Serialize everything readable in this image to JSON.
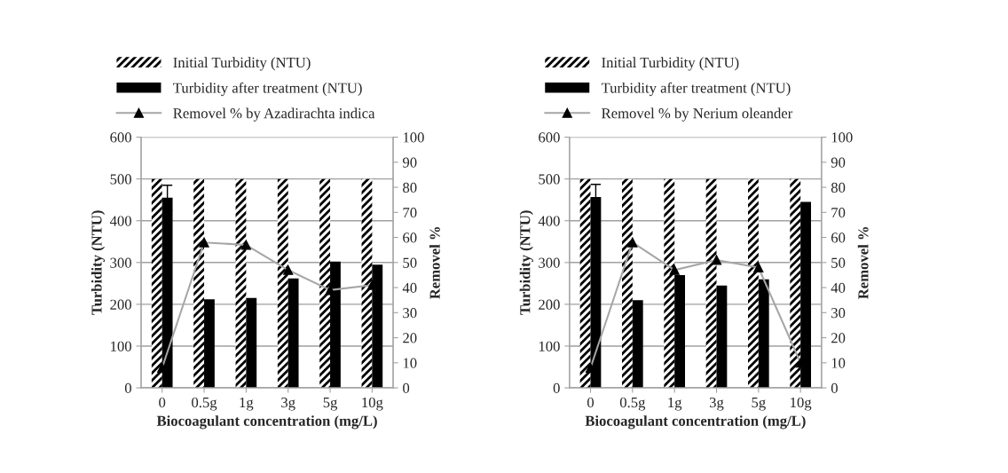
{
  "chart_data": [
    {
      "type": "bar",
      "categories": [
        "0",
        "0.5g",
        "1g",
        "3g",
        "5g",
        "10g"
      ],
      "xlabel": "Biocoagulant concentration (mg/L)",
      "ylabel": "Turbidity (NTU)",
      "y2label": "Removel %",
      "ylim": [
        0,
        600
      ],
      "yticks": [
        0,
        100,
        200,
        300,
        400,
        500,
        600
      ],
      "y2lim": [
        0,
        100
      ],
      "y2ticks": [
        0,
        10,
        20,
        30,
        40,
        50,
        60,
        70,
        80,
        90,
        100
      ],
      "grid": "y",
      "legend": "top",
      "series": [
        {
          "name": "Initial Turbidity (NTU)",
          "color": "#000000",
          "values": [
            500,
            500,
            500,
            500,
            500,
            500
          ]
        },
        {
          "name": "Turbidity after treatment (NTU)",
          "color": "#000000",
          "values": [
            455,
            212,
            215,
            262,
            302,
            295
          ],
          "errors": [
            30,
            null,
            null,
            null,
            null,
            null
          ]
        },
        {
          "name": "Removel % by Azadirachta indica",
          "type": "line",
          "axis": "y2",
          "color": "#a6a6a6",
          "marker": "triangle",
          "values": [
            8,
            58,
            57,
            47,
            39,
            41
          ]
        }
      ]
    },
    {
      "type": "bar",
      "categories": [
        "0",
        "0.5g",
        "1g",
        "3g",
        "5g",
        "10g"
      ],
      "xlabel": "Biocoagulant concentration (mg/L)",
      "ylabel": "Turbidity (NTU)",
      "y2label": "Removel %",
      "ylim": [
        0,
        600
      ],
      "yticks": [
        0,
        100,
        200,
        300,
        400,
        500,
        600
      ],
      "y2lim": [
        0,
        100
      ],
      "y2ticks": [
        0,
        10,
        20,
        30,
        40,
        50,
        60,
        70,
        80,
        90,
        100
      ],
      "grid": "y",
      "legend": "top",
      "series": [
        {
          "name": "Initial Turbidity (NTU)",
          "color": "#000000",
          "values": [
            500,
            500,
            500,
            500,
            500,
            500
          ]
        },
        {
          "name": "Turbidity after treatment (NTU)",
          "color": "#000000",
          "values": [
            457,
            210,
            270,
            245,
            260,
            445
          ],
          "errors": [
            30,
            null,
            null,
            null,
            null,
            null
          ]
        },
        {
          "name": "Removel % by Nerium oleander",
          "type": "line",
          "axis": "y2",
          "color": "#a6a6a6",
          "marker": "triangle",
          "values": [
            8,
            58,
            47,
            51,
            48,
            10
          ]
        }
      ]
    }
  ]
}
